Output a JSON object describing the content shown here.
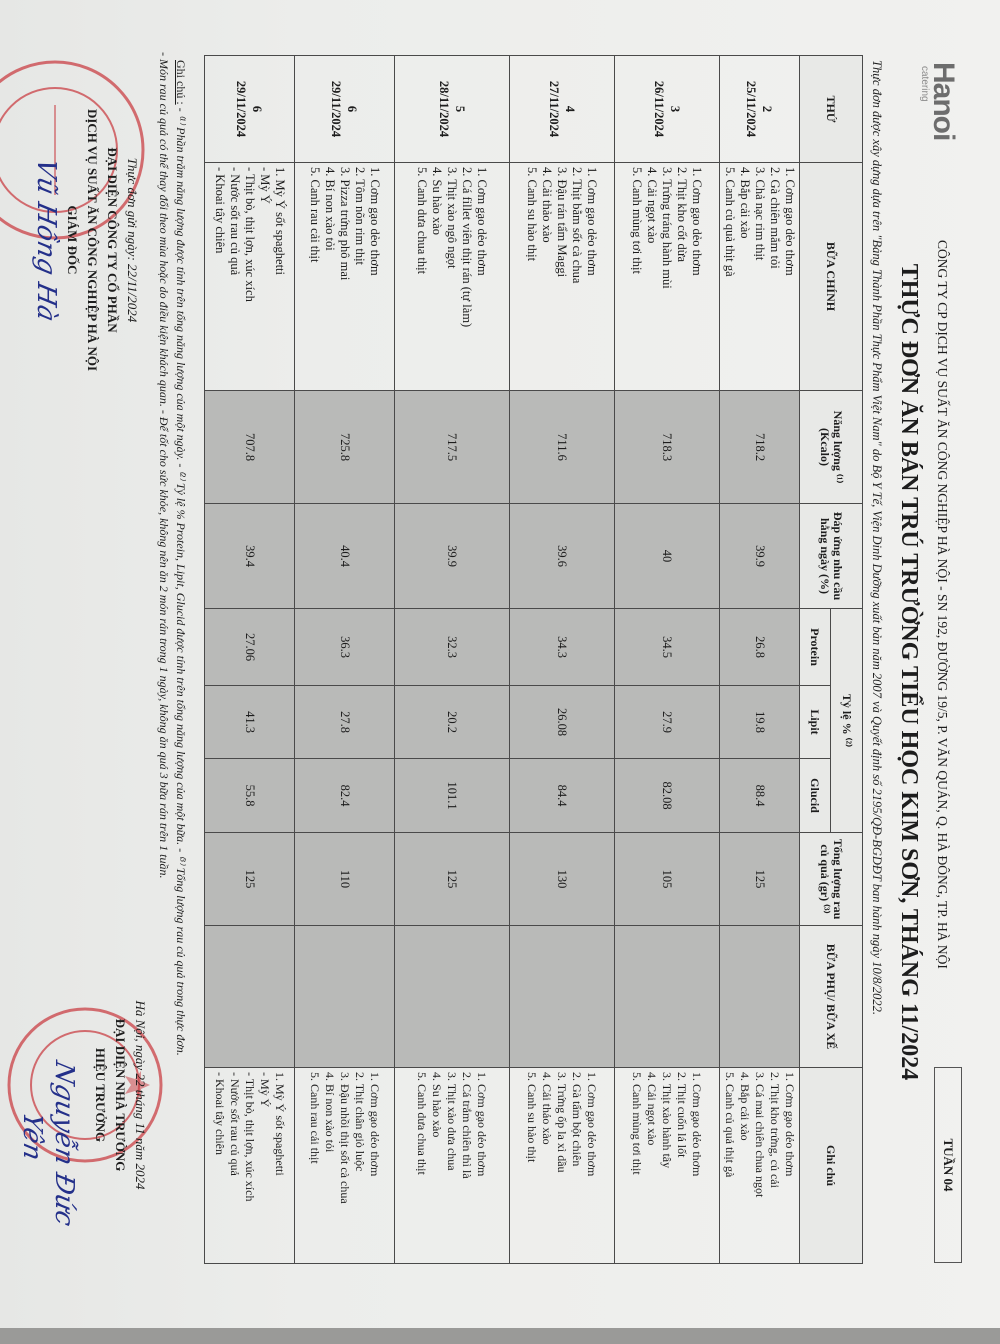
{
  "header": {
    "logo_text": "Hanoi",
    "logo_sub": "catering",
    "company": "CÔNG TY CP DỊCH VỤ SUẤT ĂN CÔNG NGHIỆP HÀ NỘI - SN 192, ĐƯỜNG 19/5, P. VĂN QUÁN, Q. HÀ ĐÔNG, TP. HÀ NỘI",
    "title": "THỰC ĐƠN ĂN BÁN TRÚ TRƯỜNG TIỂU HỌC KIM SƠN, THÁNG 11/2024",
    "week": "TUẦN 04",
    "subtitle": "Thực đơn được xây dựng dựa trên \"Bảng Thành Phần Thực Phẩm Việt Nam\" do Bộ Y Tế, Viện Dinh Dưỡng xuất bản năm 2007 và Quyết định số 2195/QĐ-BGDĐT ban hành ngày 10/8/2022."
  },
  "table": {
    "headers": {
      "thu": "THỨ",
      "main": "BỮA CHÍNH",
      "energy": "Năng lượng ⁽¹⁾ (Kcalo)",
      "pct": "Đáp ứng nhu cầu hằng ngày (%)",
      "ratio": "Tỷ lệ % ⁽²⁾",
      "protein": "Protein",
      "lipit": "Lipit",
      "glucid": "Glucid",
      "veg": "Tổng lượng rau củ quả (gr) ⁽³⁾",
      "snack": "BỮA PHỤ/ BỮA XẾ",
      "notes": "Ghi chú"
    },
    "rows": [
      {
        "thu": "2",
        "date": "25/11/2024",
        "main": [
          "1. Cơm gạo dẻo thơm",
          "2. Gà chiên mắm tỏi",
          "3. Chả nạc rim thịt",
          "4. Bắp cải xào",
          "5. Canh củ quả thịt gà"
        ],
        "energy": "718.2",
        "pct": "39.9",
        "protein": "26.8",
        "lipit": "19.8",
        "glucid": "88.4",
        "veg": "125",
        "notes": [
          "1. Cơm gạo dẻo thơm",
          "2. Thịt kho trứng, củ cải",
          "3. Cá mai chiên chua ngọt",
          "4. Bắp cải xào",
          "5. Canh củ quả thịt gà"
        ]
      },
      {
        "thu": "3",
        "date": "26/11/2024",
        "main": [
          "1. Cơm gạo dẻo thơm",
          "2. Thịt kho cốt dừa",
          "3. Trứng tráng hành mùi",
          "4. Cải ngọt xào",
          "5. Canh mùng tơi thịt"
        ],
        "energy": "718.3",
        "pct": "40",
        "protein": "34.5",
        "lipit": "27.9",
        "glucid": "82.08",
        "veg": "105",
        "notes": [
          "1. Cơm gạo dẻo thơm",
          "2. Thịt cuốn lá lốt",
          "3. Thịt xào hành tây",
          "4. Cải ngọt xào",
          "5. Canh mùng tơi thịt"
        ]
      },
      {
        "thu": "4",
        "date": "27/11/2024",
        "main": [
          "1. Cơm gạo dẻo thơm",
          "2. Thịt bằm sốt cà chua",
          "3. Đậu rán tẩm Maggi",
          "4. Cải thảo xào",
          "5. Canh su hào thịt"
        ],
        "energy": "711.6",
        "pct": "39.6",
        "protein": "34.3",
        "lipit": "26.08",
        "glucid": "84.4",
        "veg": "130",
        "notes": [
          "1. Cơm gạo dẻo thơm",
          "2. Gà tẩm bột chiên",
          "3. Trứng ốp la xì dầu",
          "4. Cải thảo xào",
          "5. Canh su hào thịt"
        ]
      },
      {
        "thu": "5",
        "date": "28/11/2024",
        "main": [
          "1. Cơm gạo dẻo thơm",
          "2. Cá fillet viên thịt rán (tự làm)",
          "3. Thịt xào ngô ngọt",
          "4. Su hào xào",
          "5. Canh dưa chua thịt"
        ],
        "energy": "717.5",
        "pct": "39.9",
        "protein": "32.3",
        "lipit": "20.2",
        "glucid": "101.1",
        "veg": "125",
        "notes": [
          "1. Cơm gạo dẻo thơm",
          "2. Cá trắm chiên thì là",
          "3. Thịt xào dưa chua",
          "4. Su hào xào",
          "5. Canh dưa chua thịt"
        ]
      },
      {
        "thu": "6",
        "date": "29/11/2024",
        "main": [
          "1. Cơm gạo dẻo thơm",
          "2. Tôm nõn rim thịt",
          "3. Pizza trứng phô mai",
          "4. Bí non xào tỏi",
          "5. Canh rau cải thịt"
        ],
        "energy": "725.8",
        "pct": "40.4",
        "protein": "36.3",
        "lipit": "27.8",
        "glucid": "82.4",
        "veg": "110",
        "notes": [
          "1. Cơm gạo dẻo thơm",
          "2. Thịt chân giò luộc",
          "3. Đậu nhồi thịt sốt cà chua",
          "4. Bí non xào tỏi",
          "5. Canh rau cải thịt"
        ]
      },
      {
        "thu": "6",
        "date": "29/11/2024",
        "main": [
          "1. Mỳ Ý sốt spaghetti",
          "- Mỳ Ý",
          "- Thịt bò, thịt lợn, xúc xích",
          "- Nước sốt rau củ quả",
          "- Khoai tây chiên"
        ],
        "energy": "707.8",
        "pct": "39.4",
        "protein": "27.06",
        "lipit": "41.3",
        "glucid": "55.8",
        "veg": "125",
        "notes": [
          "1. Mỳ Ý sốt spaghetti",
          "- Mỳ Ý",
          "- Thịt bò, thịt lợn, xúc xích",
          "- Nước sốt rau củ quả",
          "- Khoai tây chiên"
        ]
      }
    ]
  },
  "footer": {
    "note_label": "Ghi chú :",
    "note_line1": " - ⁽¹⁾ Phần trăm năng lượng được tính trên tổng năng lượng của một ngày. - ⁽²⁾ Tỷ lệ % Protein, Lipit, Glucid được tính trên tổng năng lượng của một bữa. - ⁽³⁾ Tổng lượng rau củ quả trong thực đơn.",
    "note_line2": "- Món rau củ quả có thể thay đổi theo mùa hoặc do điều kiện khách quan. - Để tốt cho sức khỏe, không nên ăn 2 món rán trong 1 ngày, không ăn quá 3 bữa rán trên 1 tuần."
  },
  "signatures": {
    "left": {
      "sent_date": "Thực đơn gửi ngày: 22/11/2024",
      "line1": "ĐẠI DIỆN CÔNG TY CỔ PHẦN",
      "line2": "DỊCH VỤ SUẤT ĂN CÔNG NGHIỆP HÀ NỘI",
      "role": "GIÁM ĐỐC",
      "name": "Vũ Hồng Hà",
      "stamp_text": "CÔNG TY CỔ PHẦN DỊCH VỤ SUẤT ĂN CÔNG NGHIỆP HÀ NỘI"
    },
    "right": {
      "place_date": "Hà Nội, ngày 22 tháng 11 năm 2024",
      "line1": "ĐẠI DIỆN NHÀ TRƯỜNG",
      "role": "HIỆU TRƯỞNG",
      "name": "Nguyễn Đức Yên",
      "stamp_text": "UBND HUYỆN THANH TRÌ - TRƯỜNG TIỂU HỌC KIM SƠN"
    }
  },
  "colors": {
    "stamp_red": "#c8343a",
    "signature_blue": "#24308a",
    "cell_shade": "#b9bab8"
  }
}
